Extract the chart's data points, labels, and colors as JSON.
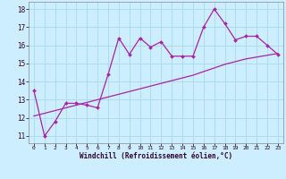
{
  "title": "",
  "xlabel": "Windchill (Refroidissement éolien,°C)",
  "ylabel": "",
  "background_color": "#cceeff",
  "grid_color": "#aaddee",
  "line_color": "#aa22aa",
  "xlim": [
    -0.5,
    23.5
  ],
  "ylim": [
    10.6,
    18.4
  ],
  "yticks": [
    11,
    12,
    13,
    14,
    15,
    16,
    17,
    18
  ],
  "xticks": [
    0,
    1,
    2,
    3,
    4,
    5,
    6,
    7,
    8,
    9,
    10,
    11,
    12,
    13,
    14,
    15,
    16,
    17,
    18,
    19,
    20,
    21,
    22,
    23
  ],
  "data_x": [
    0,
    1,
    2,
    3,
    4,
    5,
    6,
    7,
    8,
    9,
    10,
    11,
    12,
    13,
    14,
    15,
    16,
    17,
    18,
    19,
    20,
    21,
    22,
    23
  ],
  "data_y": [
    13.5,
    11.0,
    11.8,
    12.8,
    12.8,
    12.7,
    12.55,
    14.4,
    16.4,
    15.5,
    16.4,
    15.9,
    16.2,
    15.4,
    15.4,
    15.4,
    17.0,
    18.0,
    17.2,
    16.3,
    16.5,
    16.5,
    16.0,
    15.5
  ],
  "trend_y": [
    12.1,
    12.25,
    12.4,
    12.55,
    12.7,
    12.85,
    13.0,
    13.15,
    13.3,
    13.45,
    13.6,
    13.75,
    13.9,
    14.05,
    14.2,
    14.35,
    14.55,
    14.75,
    14.95,
    15.1,
    15.25,
    15.35,
    15.45,
    15.55
  ]
}
